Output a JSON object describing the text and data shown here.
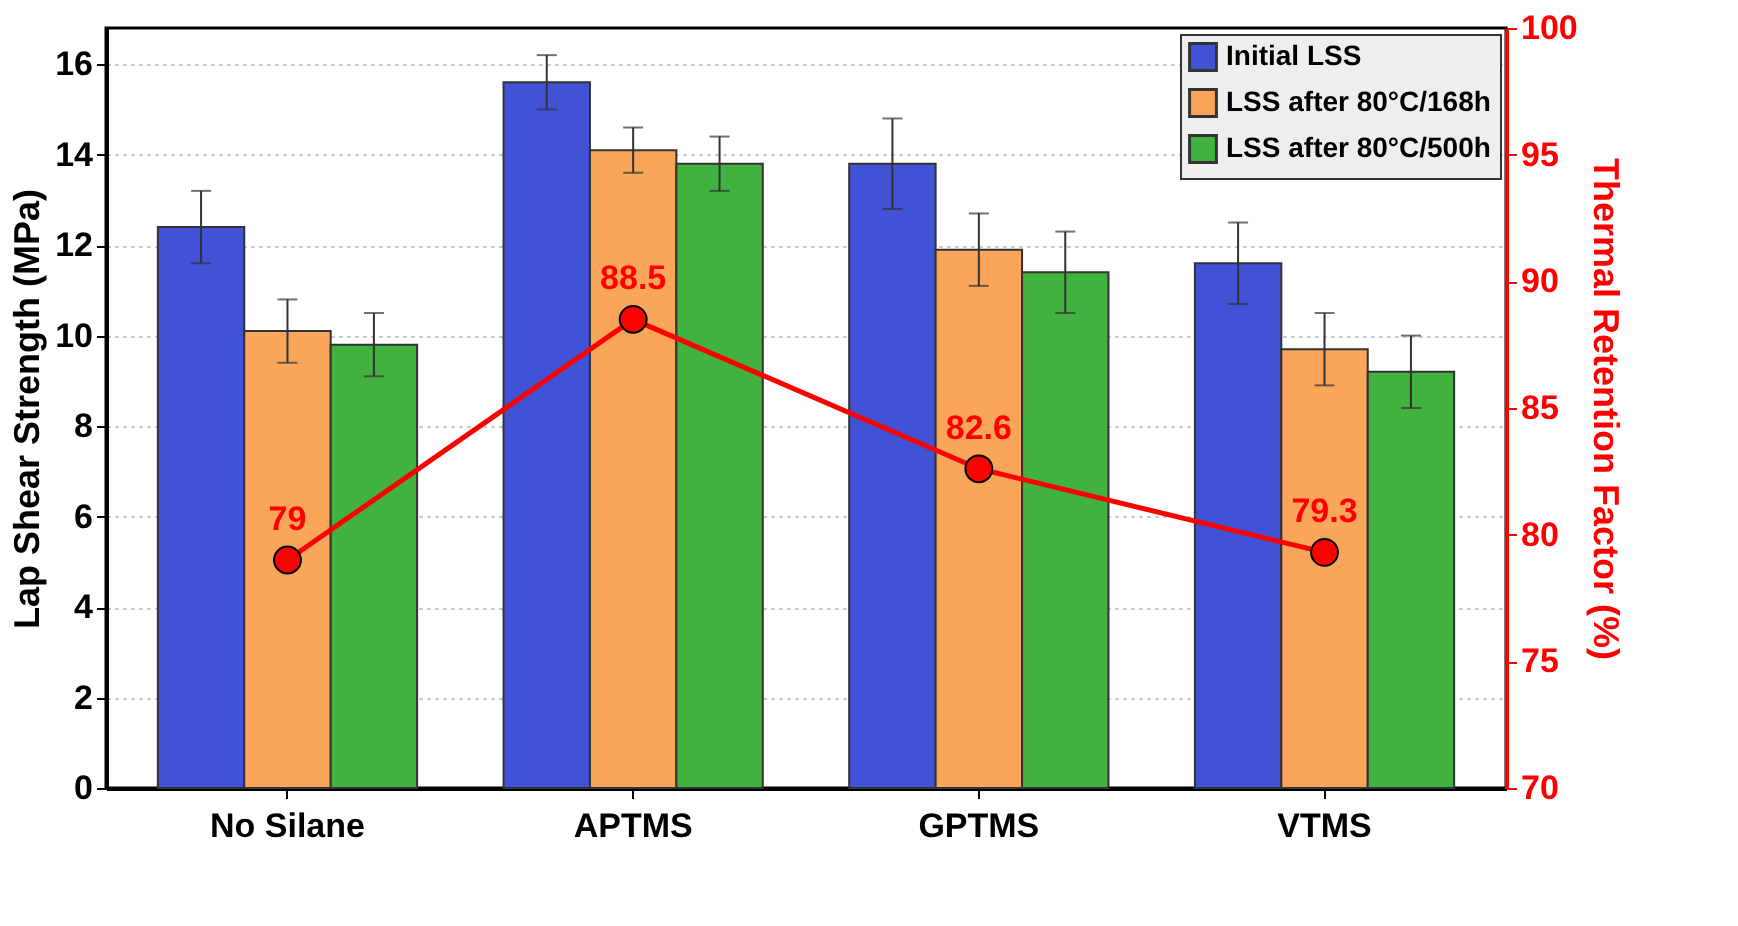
{
  "chart_data": {
    "type": "bar",
    "categories": [
      "No Silane",
      "APTMS",
      "GPTMS",
      "VTMS"
    ],
    "ylabel": "Lap Shear Strength (MPa)",
    "y2label": "Thermal Retention Factor (%)",
    "ylim": [
      0,
      16.8
    ],
    "yticks": [
      0,
      2,
      4,
      6,
      8,
      10,
      12,
      14,
      16
    ],
    "y2lim": [
      70,
      100
    ],
    "y2ticks": [
      70,
      75,
      80,
      85,
      90,
      95,
      100
    ],
    "grid": "y",
    "legend": "top right",
    "series": [
      {
        "name": "Initial LSS",
        "color": "#4052d6",
        "values": [
          12.4,
          15.6,
          13.8,
          11.6
        ],
        "errors": [
          0.8,
          0.6,
          1.0,
          0.9
        ]
      },
      {
        "name": "LSS after 80°C/168h",
        "color": "#f9a65a",
        "values": [
          10.1,
          14.1,
          11.9,
          9.7
        ],
        "errors": [
          0.7,
          0.5,
          0.8,
          0.8
        ]
      },
      {
        "name": "LSS after 80°C/500h",
        "color": "#41b13f",
        "values": [
          9.8,
          13.8,
          11.4,
          9.2
        ],
        "errors": [
          0.7,
          0.6,
          0.9,
          0.8
        ]
      },
      {
        "type": "line",
        "axis": "y2",
        "color": "#ff0000",
        "marker": "circle",
        "line_style": "solid",
        "values": [
          79,
          88.5,
          82.6,
          79.3
        ],
        "value_labels": [
          "79",
          "88.5",
          "82.6",
          "79.3"
        ]
      }
    ]
  }
}
